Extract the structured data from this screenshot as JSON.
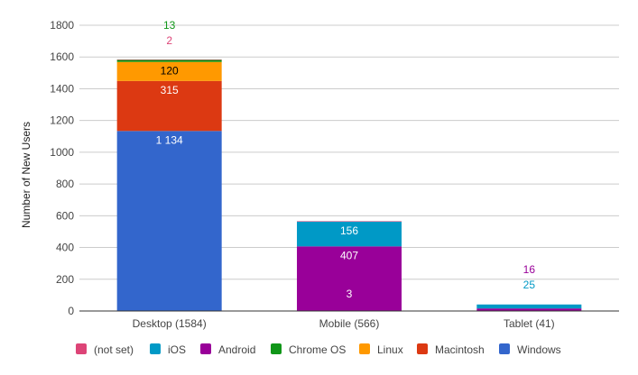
{
  "chart_data": {
    "type": "bar",
    "stacked": true,
    "categories": [
      "Desktop (1584)",
      "Mobile (566)",
      "Tablet (41)"
    ],
    "ylabel": "Number of New Users",
    "xlabel": "",
    "ylim": [
      0,
      1800
    ],
    "yticks": [
      0,
      200,
      400,
      600,
      800,
      1000,
      1200,
      1400,
      1600,
      1800
    ],
    "grid": true,
    "legend_position": "bottom",
    "series": [
      {
        "name": "Windows",
        "color": "#3366cc",
        "label_color": "#ffffff",
        "values": [
          1134,
          0,
          0
        ],
        "labels": [
          "1 134",
          "",
          ""
        ]
      },
      {
        "name": "Macintosh",
        "color": "#dc3912",
        "label_color": "#ffffff",
        "values": [
          315,
          0,
          0
        ],
        "labels": [
          "315",
          "",
          ""
        ]
      },
      {
        "name": "Linux",
        "color": "#ff9900",
        "label_color": "#000000",
        "values": [
          120,
          0,
          0
        ],
        "labels": [
          "120",
          "",
          ""
        ]
      },
      {
        "name": "Chrome OS",
        "color": "#109618",
        "label_color": "#109618",
        "values": [
          13,
          0,
          0
        ],
        "labels": [
          "13",
          "",
          ""
        ]
      },
      {
        "name": "Android",
        "color": "#990099",
        "label_color": "#ffffff",
        "values": [
          0,
          407,
          16
        ],
        "labels": [
          "",
          "407",
          "16"
        ]
      },
      {
        "name": "iOS",
        "color": "#0099c6",
        "label_color": "#ffffff",
        "values": [
          0,
          156,
          25
        ],
        "labels": [
          "",
          "156",
          "25"
        ]
      },
      {
        "name": "(not set)",
        "color": "#dd4477",
        "label_color": "#dd4477",
        "values": [
          2,
          3,
          0
        ],
        "labels": [
          "2",
          "3",
          ""
        ]
      }
    ],
    "legend_order": [
      "(not set)",
      "iOS",
      "Android",
      "Chrome OS",
      "Linux",
      "Macintosh",
      "Windows"
    ]
  }
}
